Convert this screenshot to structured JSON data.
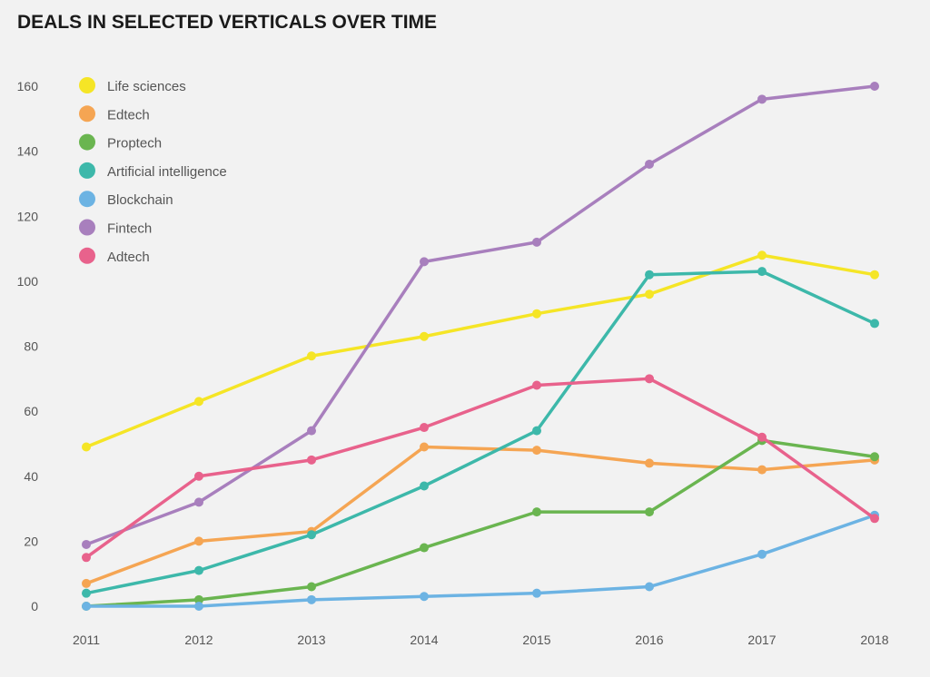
{
  "chart_data": {
    "type": "line",
    "title": "DEALS IN SELECTED VERTICALS OVER TIME",
    "xlabel": "",
    "ylabel": "",
    "x": [
      "2011",
      "2012",
      "2013",
      "2014",
      "2015",
      "2016",
      "2017",
      "2018"
    ],
    "ylim": [
      0,
      160
    ],
    "yticks": [
      0,
      20,
      40,
      60,
      80,
      100,
      120,
      140,
      160
    ],
    "grid": false,
    "legend_position": "top-left",
    "series": [
      {
        "name": "Life sciences",
        "color": "#f5e526",
        "values": [
          49,
          63,
          77,
          83,
          90,
          96,
          108,
          102
        ]
      },
      {
        "name": "Edtech",
        "color": "#f5a553",
        "values": [
          7,
          20,
          23,
          49,
          48,
          44,
          42,
          45
        ]
      },
      {
        "name": "Proptech",
        "color": "#6ab550",
        "values": [
          0,
          2,
          6,
          18,
          29,
          29,
          51,
          46
        ]
      },
      {
        "name": "Artificial intelligence",
        "color": "#3db8aa",
        "values": [
          4,
          11,
          22,
          37,
          54,
          102,
          103,
          87
        ]
      },
      {
        "name": "Blockchain",
        "color": "#6cb3e3",
        "values": [
          0,
          0,
          2,
          3,
          4,
          6,
          16,
          28
        ]
      },
      {
        "name": "Fintech",
        "color": "#a87fbd",
        "values": [
          19,
          32,
          54,
          106,
          112,
          136,
          156,
          160
        ]
      },
      {
        "name": "Adtech",
        "color": "#e8628c",
        "values": [
          15,
          40,
          45,
          55,
          68,
          70,
          52,
          27
        ]
      }
    ]
  }
}
